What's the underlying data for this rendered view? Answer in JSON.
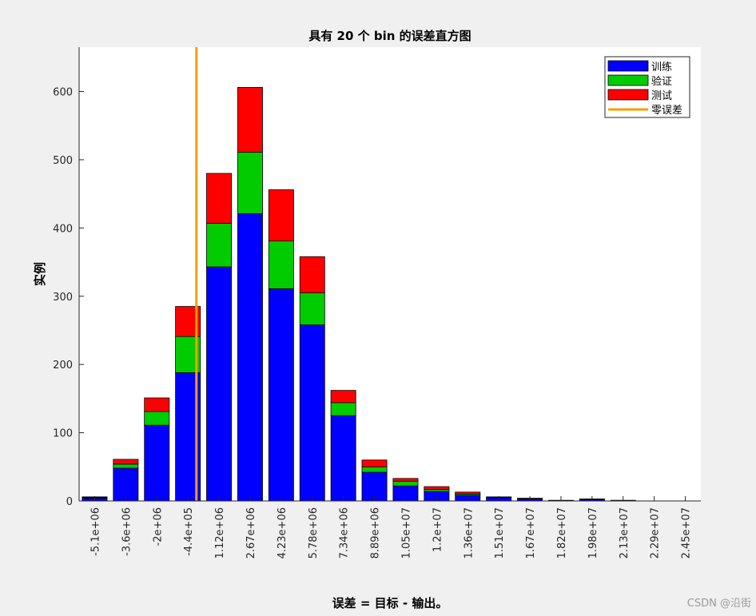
{
  "chart_data": {
    "type": "bar",
    "stacked": true,
    "title": "具有 20 个 bin 的误差直方图",
    "xlabel": "误差 = 目标 - 输出。",
    "ylabel": "实例",
    "ylim": [
      0,
      665
    ],
    "yticks": [
      0,
      100,
      200,
      300,
      400,
      500,
      600
    ],
    "categories": [
      "-5.1e+06",
      "-3.6e+06",
      "-2e+06",
      "-4.4e+05",
      "1.12e+06",
      "2.67e+06",
      "4.23e+06",
      "5.78e+06",
      "7.34e+06",
      "8.89e+06",
      "1.05e+07",
      "1.2e+07",
      "1.36e+07",
      "1.51e+07",
      "1.67e+07",
      "1.82e+07",
      "1.98e+07",
      "2.13e+07",
      "2.29e+07",
      "2.45e+07"
    ],
    "series": [
      {
        "name": "训练",
        "color": "#0000ff",
        "values": [
          4,
          48,
          111,
          188,
          343,
          421,
          311,
          258,
          125,
          42,
          22,
          14,
          8,
          5,
          3,
          1,
          2,
          1,
          0,
          0
        ]
      },
      {
        "name": "验证",
        "color": "#00cc00",
        "values": [
          1,
          6,
          20,
          53,
          64,
          90,
          70,
          47,
          19,
          8,
          7,
          3,
          2,
          1,
          0,
          0,
          0,
          0,
          0,
          0
        ]
      },
      {
        "name": "测试",
        "color": "#ff0000",
        "values": [
          1,
          7,
          20,
          44,
          73,
          95,
          75,
          53,
          18,
          10,
          4,
          4,
          3,
          0,
          1,
          0,
          1,
          0,
          0,
          0
        ]
      }
    ],
    "zero_error": {
      "name": "零误差",
      "x": 0,
      "color": "#f5a000"
    },
    "legend_position": "top-right",
    "grid": false
  },
  "watermark": "CSDN @沿街"
}
